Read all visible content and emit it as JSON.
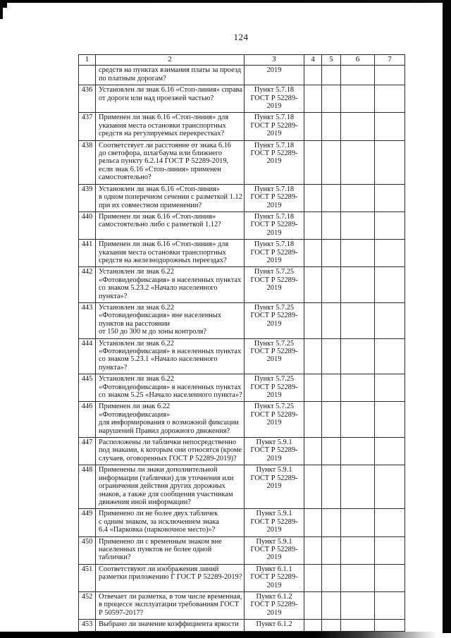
{
  "page": {
    "number": "124"
  },
  "table": {
    "headers": [
      "1",
      "2",
      "3",
      "4",
      "5",
      "6",
      "7"
    ],
    "rows": [
      {
        "num": "",
        "question": "средств на пунктах взимания платы за проезд\nпо платным дорогам?",
        "ref": "2019"
      },
      {
        "num": "436",
        "question": "Установлен ли знак 6.16 «Стоп-линия» справа\nот дороги или над проезжей частью?",
        "ref": "Пункт 5.7.18\nГОСТ Р 52289-\n2019"
      },
      {
        "num": "437",
        "question": "Применен ли знак 6.16 «Стоп-линия» для\nуказания места остановки транспортных\nсредств на регулируемых перекрестках?",
        "ref": "Пункт 5.7.18\nГОСТ Р 52289-\n2019"
      },
      {
        "num": "438",
        "question": "Соответствует ли расстояние от знака 6.16\nдо светофора, шлагбаума или ближнего\nрельса пункту 6.2.14 ГОСТ Р 52289-2019,\nесли знак 6.16 «Стоп-линия» применен\nсамостоятельно?",
        "ref": "Пункт 5.7.18\nГОСТ Р 52289-\n2019"
      },
      {
        "num": "439",
        "question": "Установлен ли знак 6.16 «Стоп-линия»\nв одном поперечном сечении с разметкой 1.12\nпри их совместном применении?",
        "ref": "Пункт 5.7.18\nГОСТ Р 52289-\n2019"
      },
      {
        "num": "440",
        "question": "Применен ли знак 6.16 «Стоп-линия»\nсамостоятельно либо с разметкой 1.12?",
        "ref": "Пункт 5.7.18\nГОСТ Р 52289-\n2019"
      },
      {
        "num": "441",
        "question": "Применен ли знак 6.16 «Стоп-линия» для\nуказания места остановки транспортных\nсредств на железнодорожных переездах?",
        "ref": "Пункт 5.7.18\nГОСТ Р 52289-\n2019"
      },
      {
        "num": "442",
        "question": "Установлен ли знак 6.22\n«Фотовидеофиксация» в населенных пунктах\nсо знаком 5.23.2 «Начало населенного\nпункта»?",
        "ref": "Пункт 5.7.25\nГОСТ Р 52289-\n2019"
      },
      {
        "num": "443",
        "question": "Установлен ли знак 6.22\n«Фотовидеофиксация» вне населенных\nпунктов на расстоянии\nот 150 до 300 м до зоны контроля?",
        "ref": "Пункт 5.7.25\nГОСТ Р 52289-\n2019"
      },
      {
        "num": "444",
        "question": "Установлен ли знак 6.22\n«Фотовидеофиксация» в населенных пунктах\nсо знаком 5.23.1 «Начало населенного\nпункта»?",
        "ref": "Пункт 5.7.25\nГОСТ Р 52289-\n2019"
      },
      {
        "num": "445",
        "question": "Установлен ли знак 6.22\n«Фотовидеофиксация» в населенных пунктах\nсо знаком 5.25 «Начало населенного пункта»?",
        "ref": "Пункт 5.7.25\nГОСТ Р 52289-\n2019"
      },
      {
        "num": "446",
        "question": "Применен ли знак 6.22 «Фотовидеофиксация»\nдля информирования о возможной фиксации\nнарушений Правил дорожного движения?",
        "ref": "Пункт 5.7.25\nГОСТ Р 52289-\n2019"
      },
      {
        "num": "447",
        "question": "Расположены ли таблички непосредственно\nпод знаками, к которым они относятся (кроме\nслучаев, оговоренных ГОСТ Р 52289-2019)?",
        "ref": "Пункт 5.9.1\nГОСТ Р 52289-\n2019"
      },
      {
        "num": "448",
        "question": "Применены ли знаки дополнительной\nинформации (таблички) для уточнения или\nограничения действия других дорожных\nзнаков, а также для сообщения участникам\nдвижения иной информации?",
        "ref": "Пункт 5.9.1\nГОСТ Р 52289-\n2019"
      },
      {
        "num": "449",
        "question": "Применено ли не более двух табличек\nс одним знаком, за исключением знака\n6.4 «Парковка (парковочное место)»?",
        "ref": "Пункт 5.9.1\nГОСТ Р 52289-\n2019"
      },
      {
        "num": "450",
        "question": "Применено ли с временным знаком вне\nнаселенных пунктов не более одной\nтаблички?",
        "ref": "Пункт 5.9.1\nГОСТ Р 52289-\n2019"
      },
      {
        "num": "451",
        "question": "Соответствуют ли изображения линий\nразметки приложению Г ГОСТ Р 52289-2019?",
        "ref": "Пункт 6.1.1\nГОСТ Р 52289-\n2019"
      },
      {
        "num": "452",
        "question": "Отвечает ли разметка, в том числе временная,\nв процессе эксплуатации требованиям ГОСТ\nР 50597-2017?",
        "ref": "Пункт 6.1.2\nГОСТ Р 52289-\n2019"
      },
      {
        "num": "453",
        "question": "Выбрано ли значение коэффициента яркости",
        "ref": "Пункт 6.1.2"
      }
    ]
  }
}
